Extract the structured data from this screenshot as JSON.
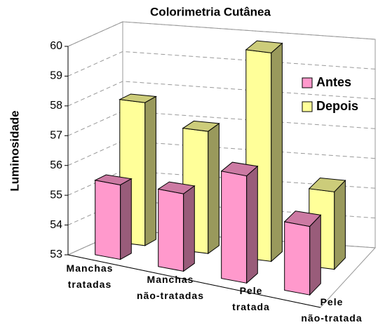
{
  "chart_data": {
    "type": "bar3d",
    "title": "Colorimetria Cutânea",
    "ylabel": "Luminosidade",
    "categories": [
      "Manchas tratadas",
      "Manchas não-tratadas",
      "Pele tratada",
      "Pele não-tratada"
    ],
    "series": [
      {
        "name": "Antes",
        "color": "#ff99cc",
        "values": [
          55.5,
          55.6,
          56.6,
          55.3
        ]
      },
      {
        "name": "Depois",
        "color": "#ffff99",
        "values": [
          57.8,
          57.1,
          60.0,
          55.6
        ]
      }
    ],
    "ylim": [
      53,
      60
    ],
    "yticks": [
      53,
      54,
      55,
      56,
      57,
      58,
      59,
      60
    ],
    "grid": true,
    "legend": "right"
  }
}
